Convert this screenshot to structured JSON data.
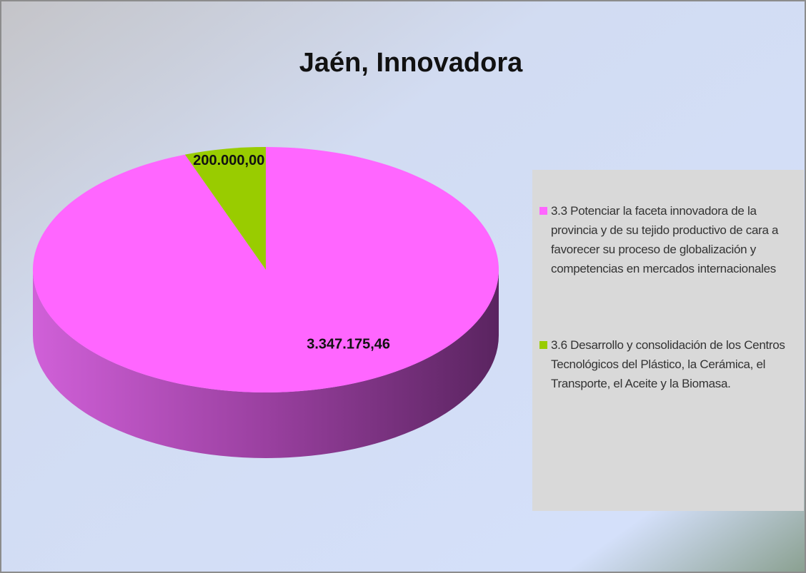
{
  "chart_data": {
    "type": "pie",
    "title": "Jaén, Innovadora",
    "categories": [
      "3.3 Potenciar la faceta innovadora de la provincia y de su tejido productivo de cara a favorecer su proceso de globalización y competencias en mercados internacionales",
      "3.6 Desarrollo y consolidación de los Centros Tecnológicos del Plástico, la Cerámica, el Transporte, el Aceite y la Biomasa."
    ],
    "values": [
      3347175.46,
      200000
    ],
    "value_labels": [
      "3.347.175,46",
      "200.000,00"
    ],
    "colors": [
      "#ff66ff",
      "#99cc00"
    ],
    "legend": "right"
  }
}
